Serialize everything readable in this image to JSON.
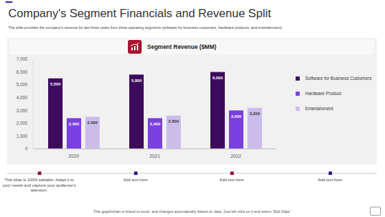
{
  "slide": {
    "title": "Company's Segment Financials and Revenue Split",
    "subtitle": "The slide provides the company's revenue for last three years from three operating segments (software for business customers, hardware products, and entertainment)",
    "notes": [
      "This slide is 100% editable. Adapt it to your needs and capture your audience's attention.",
      "Add text here",
      "Add text here",
      "Add text here"
    ],
    "footer": "This graph/chart is linked to excel, and changes automatically based on data. Just left click on it and select \"Edit Data\"."
  },
  "chart_data": {
    "type": "bar",
    "title": "Segment Revenue ($MM)",
    "categories": [
      "2020",
      "2021",
      "2022"
    ],
    "series": [
      {
        "name": "Software for Business Customers",
        "color": "#3d0b5e",
        "values": [
          5500,
          5800,
          6000
        ],
        "value_labels": [
          "5,500",
          "5,800",
          "6,000"
        ]
      },
      {
        "name": "Hardware Product",
        "color": "#7a3fe0",
        "values": [
          2400,
          2400,
          3000
        ],
        "value_labels": [
          "2,400",
          "2,400",
          "3,000"
        ]
      },
      {
        "name": "Entertainment",
        "color": "#cbbdea",
        "values": [
          2500,
          2600,
          3200
        ],
        "value_labels": [
          "2,500",
          "2,600",
          "3,200"
        ]
      }
    ],
    "ylim": [
      0,
      7000
    ],
    "yticks": [
      0,
      {
        "value": 1000,
        "label": "1,000"
      },
      {
        "value": 2000,
        "label": "2,000"
      },
      {
        "value": 3000,
        "label": "3,000"
      },
      {
        "value": 4000,
        "label": "4,000"
      },
      {
        "value": 5000,
        "label": "5,000"
      },
      {
        "value": 6000,
        "label": "6,000"
      },
      {
        "value": 7000,
        "label": "7,000"
      }
    ],
    "grid": false,
    "legend": "right",
    "data_labels": true
  }
}
